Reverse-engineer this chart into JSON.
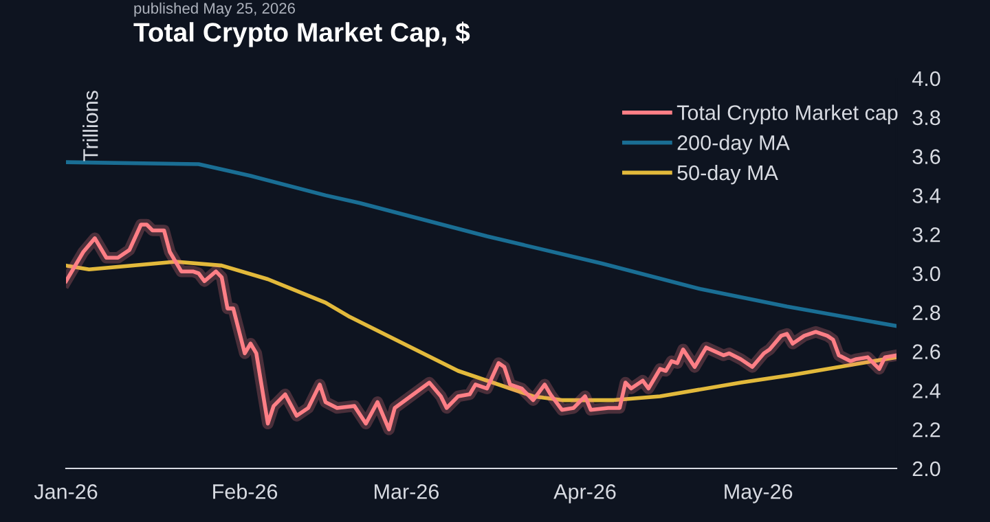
{
  "chart_data": {
    "type": "line",
    "title": "Total Crypto Market Cap, $",
    "subtitle": "published May 25, 2026",
    "ylabel": "Trillions",
    "series": [
      {
        "name": "Total Crypto Market cap",
        "color": "#ff7f86",
        "x": [
          "2026-01-01",
          "2026-01-04",
          "2026-01-06",
          "2026-01-08",
          "2026-01-10",
          "2026-01-12",
          "2026-01-14",
          "2026-01-15",
          "2026-01-16",
          "2026-01-18",
          "2026-01-19",
          "2026-01-21",
          "2026-01-23",
          "2026-01-24",
          "2026-01-25",
          "2026-01-27",
          "2026-01-28",
          "2026-01-29",
          "2026-01-30",
          "2026-02-01",
          "2026-02-02",
          "2026-02-03",
          "2026-02-05",
          "2026-02-06",
          "2026-02-08",
          "2026-02-10",
          "2026-02-12",
          "2026-02-14",
          "2026-02-15",
          "2026-02-17",
          "2026-02-20",
          "2026-02-22",
          "2026-02-24",
          "2026-02-26",
          "2026-02-27",
          "2026-03-05",
          "2026-03-07",
          "2026-03-08",
          "2026-03-10",
          "2026-03-12",
          "2026-03-13",
          "2026-03-15",
          "2026-03-17",
          "2026-03-18",
          "2026-03-19",
          "2026-03-21",
          "2026-03-23",
          "2026-03-25",
          "2026-03-26",
          "2026-03-28",
          "2026-03-30",
          "2026-04-01",
          "2026-04-02",
          "2026-04-05",
          "2026-04-07",
          "2026-04-08",
          "2026-04-09",
          "2026-04-11",
          "2026-04-12",
          "2026-04-14",
          "2026-04-15",
          "2026-04-16",
          "2026-04-17",
          "2026-04-18",
          "2026-04-20",
          "2026-04-22",
          "2026-04-25",
          "2026-04-26",
          "2026-04-28",
          "2026-04-30",
          "2026-05-02",
          "2026-05-03",
          "2026-05-05",
          "2026-05-06",
          "2026-05-07",
          "2026-05-09",
          "2026-05-11",
          "2026-05-13",
          "2026-05-14",
          "2026-05-15",
          "2026-05-17",
          "2026-05-18",
          "2026-05-20",
          "2026-05-22",
          "2026-05-23",
          "2026-05-25"
        ],
        "values": [
          2.96,
          3.11,
          3.18,
          3.08,
          3.08,
          3.12,
          3.25,
          3.25,
          3.22,
          3.22,
          3.11,
          3.01,
          3.01,
          3.0,
          2.96,
          3.01,
          2.98,
          2.82,
          2.82,
          2.59,
          2.64,
          2.59,
          2.23,
          2.32,
          2.38,
          2.27,
          2.31,
          2.43,
          2.34,
          2.31,
          2.32,
          2.23,
          2.34,
          2.2,
          2.31,
          2.44,
          2.37,
          2.31,
          2.37,
          2.38,
          2.43,
          2.41,
          2.54,
          2.52,
          2.43,
          2.41,
          2.35,
          2.43,
          2.38,
          2.3,
          2.31,
          2.37,
          2.3,
          2.31,
          2.31,
          2.44,
          2.41,
          2.45,
          2.41,
          2.51,
          2.5,
          2.55,
          2.54,
          2.61,
          2.52,
          2.62,
          2.58,
          2.59,
          2.56,
          2.52,
          2.59,
          2.61,
          2.68,
          2.69,
          2.64,
          2.68,
          2.7,
          2.68,
          2.66,
          2.58,
          2.55,
          2.56,
          2.57,
          2.51,
          2.57,
          2.58
        ]
      },
      {
        "name": "200-day MA",
        "color": "#1a6e94",
        "x": [
          "2026-01-01",
          "2026-01-24",
          "2026-02-02",
          "2026-02-15",
          "2026-02-21",
          "2026-03-15",
          "2026-04-04",
          "2026-04-21",
          "2026-05-06",
          "2026-05-25"
        ],
        "values": [
          3.57,
          3.56,
          3.5,
          3.4,
          3.36,
          3.19,
          3.05,
          2.92,
          2.83,
          2.73
        ]
      },
      {
        "name": "50-day MA",
        "color": "#e2b93b",
        "x": [
          "2026-01-01",
          "2026-01-05",
          "2026-01-20",
          "2026-01-28",
          "2026-02-05",
          "2026-02-15",
          "2026-02-19",
          "2026-03-10",
          "2026-03-23",
          "2026-03-28",
          "2026-04-06",
          "2026-04-14",
          "2026-04-28",
          "2026-05-07",
          "2026-05-25"
        ],
        "values": [
          3.04,
          3.02,
          3.06,
          3.04,
          2.97,
          2.85,
          2.78,
          2.5,
          2.37,
          2.35,
          2.35,
          2.37,
          2.44,
          2.48,
          2.57
        ]
      }
    ],
    "xlim": [
      "2026-01-01",
      "2026-05-25"
    ],
    "xticks": [
      {
        "value": "2026-01-01",
        "label": "Jan-26"
      },
      {
        "value": "2026-02-01",
        "label": "Feb-26"
      },
      {
        "value": "2026-03-01",
        "label": "Mar-26"
      },
      {
        "value": "2026-04-01",
        "label": "Apr-26"
      },
      {
        "value": "2026-05-01",
        "label": "May-26"
      }
    ],
    "ylim": [
      2.0,
      4.0
    ],
    "yticks": [
      {
        "value": 2.0,
        "label": "2.0"
      },
      {
        "value": 2.2,
        "label": "2.2"
      },
      {
        "value": 2.4,
        "label": "2.4"
      },
      {
        "value": 2.6,
        "label": "2.6"
      },
      {
        "value": 2.8,
        "label": "2.8"
      },
      {
        "value": 3.0,
        "label": "3.0"
      },
      {
        "value": 3.2,
        "label": "3.2"
      },
      {
        "value": 3.4,
        "label": "3.4"
      },
      {
        "value": 3.6,
        "label": "3.6"
      },
      {
        "value": 3.8,
        "label": "3.8"
      },
      {
        "value": 4.0,
        "label": "4.0"
      }
    ],
    "grid": false,
    "legend": "top right",
    "marker": "none",
    "line_style": "solid"
  }
}
